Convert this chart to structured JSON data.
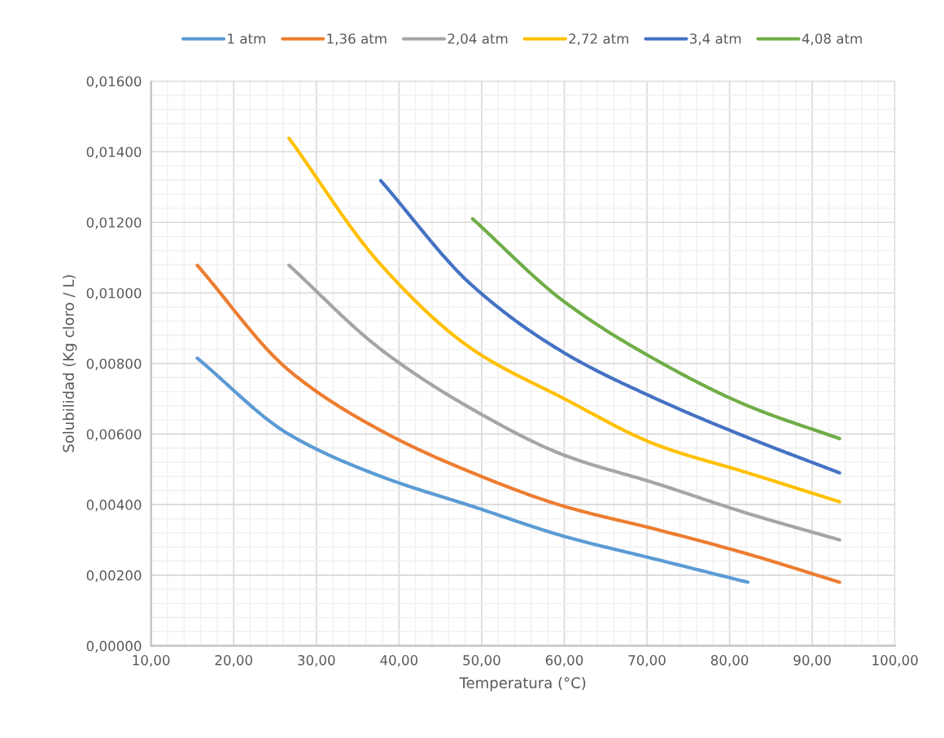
{
  "chart_data": {
    "type": "line",
    "xlabel": "Temperatura (°C)",
    "ylabel": "Solubilidad (Kg cloro / L)",
    "xlim": [
      10,
      100
    ],
    "ylim": [
      0,
      0.016
    ],
    "xticks": [
      {
        "value": 10,
        "label": "10,00"
      },
      {
        "value": 20,
        "label": "20,00"
      },
      {
        "value": 30,
        "label": "30,00"
      },
      {
        "value": 40,
        "label": "40,00"
      },
      {
        "value": 50,
        "label": "50,00"
      },
      {
        "value": 60,
        "label": "60,00"
      },
      {
        "value": 70,
        "label": "70,00"
      },
      {
        "value": 80,
        "label": "80,00"
      },
      {
        "value": 90,
        "label": "90,00"
      },
      {
        "value": 100,
        "label": "100,00"
      }
    ],
    "yticks": [
      {
        "value": 0,
        "label": "0,00000"
      },
      {
        "value": 0.002,
        "label": "0,00200"
      },
      {
        "value": 0.004,
        "label": "0,00400"
      },
      {
        "value": 0.006,
        "label": "0,00600"
      },
      {
        "value": 0.008,
        "label": "0,00800"
      },
      {
        "value": 0.01,
        "label": "0,01000"
      },
      {
        "value": 0.012,
        "label": "0,01200"
      },
      {
        "value": 0.014,
        "label": "0,01400"
      },
      {
        "value": 0.016,
        "label": "0,01600"
      }
    ],
    "grid": true,
    "legend": "top",
    "marker": "none",
    "line_style": "solid",
    "series": [
      {
        "name": "1 atm",
        "color": "#5b9bd5",
        "x": [
          15.6,
          26.7,
          37.8,
          48.9,
          60,
          71.1,
          82.2
        ],
        "values": [
          0.00815,
          0.00599,
          0.0048,
          0.00395,
          0.0031,
          0.00245,
          0.0018
        ]
      },
      {
        "name": "1,36 atm",
        "color": "#ed7d31",
        "x": [
          15.6,
          26.7,
          37.8,
          48.9,
          60,
          71.1,
          82.2,
          93.3
        ],
        "values": [
          0.01078,
          0.0078,
          0.0061,
          0.0049,
          0.00395,
          0.0033,
          0.0026,
          0.0018
        ]
      },
      {
        "name": "2,04 atm",
        "color": "#a5a5a5",
        "x": [
          26.7,
          37.8,
          48.9,
          60,
          71.1,
          82.2,
          93.3
        ],
        "values": [
          0.01078,
          0.0084,
          0.0067,
          0.0054,
          0.0046,
          0.00375,
          0.003
        ]
      },
      {
        "name": "2,72 atm",
        "color": "#ffc000",
        "x": [
          26.7,
          37.8,
          48.9,
          60,
          71.1,
          82.2,
          93.3
        ],
        "values": [
          0.01438,
          0.0108,
          0.0084,
          0.007,
          0.0057,
          0.0049,
          0.00408
        ]
      },
      {
        "name": "3,4 atm",
        "color": "#4472c4",
        "x": [
          37.8,
          48.9,
          60,
          71.1,
          82.2,
          93.3
        ],
        "values": [
          0.01318,
          0.0102,
          0.0083,
          0.007,
          0.0059,
          0.0049
        ]
      },
      {
        "name": "4,08 atm",
        "color": "#70ad47",
        "x": [
          48.9,
          60,
          71.1,
          82.2,
          93.3
        ],
        "values": [
          0.0121,
          0.00975,
          0.0081,
          0.0068,
          0.00587
        ]
      }
    ]
  }
}
